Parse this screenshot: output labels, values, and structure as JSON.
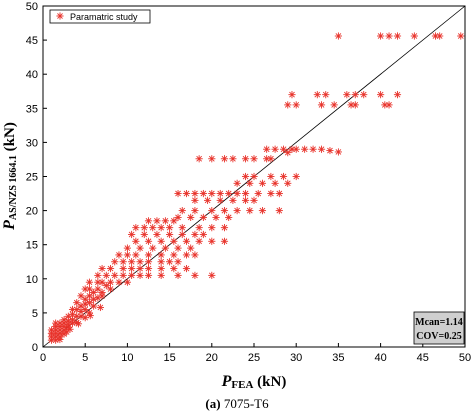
{
  "chart_data": {
    "type": "scatter",
    "xlabel_main": "P",
    "xlabel_sub": "FEA",
    "xlabel_unit": " (kN)",
    "ylabel_main": "P",
    "ylabel_sub": "AS/NZS 1664.1",
    "ylabel_unit": " (kN)",
    "xlim": [
      0,
      50
    ],
    "ylim": [
      0,
      50
    ],
    "xticks": [
      "0",
      "5",
      "10",
      "15",
      "20",
      "25",
      "30",
      "35",
      "40",
      "45",
      "50"
    ],
    "yticks": [
      "0",
      "5",
      "10",
      "15",
      "20",
      "25",
      "30",
      "35",
      "40",
      "45",
      "50"
    ],
    "legend": {
      "label": "Paramatric study",
      "position": "top-left"
    },
    "stats": {
      "mean": "Mcan=1.14",
      "cov": "COV=0.25"
    },
    "reference_line": {
      "from": [
        0,
        0
      ],
      "to": [
        50,
        50
      ]
    },
    "colors": {
      "marker": "#e8322a",
      "line": "#000000"
    },
    "series": [
      {
        "name": "Paramatric study",
        "points": [
          [
            35.0,
            45.6
          ],
          [
            40.0,
            45.6
          ],
          [
            41.0,
            45.6
          ],
          [
            42.0,
            45.6
          ],
          [
            44.0,
            45.6
          ],
          [
            46.5,
            45.6
          ],
          [
            47.0,
            45.6
          ],
          [
            49.5,
            45.6
          ],
          [
            29.5,
            37.0
          ],
          [
            32.5,
            37.0
          ],
          [
            33.5,
            37.0
          ],
          [
            36.0,
            37.0
          ],
          [
            37.0,
            37.0
          ],
          [
            38.0,
            37.0
          ],
          [
            40.0,
            37.0
          ],
          [
            42.0,
            37.0
          ],
          [
            29.0,
            35.5
          ],
          [
            30.0,
            35.5
          ],
          [
            33.0,
            35.5
          ],
          [
            34.5,
            35.5
          ],
          [
            36.5,
            35.5
          ],
          [
            37.0,
            35.5
          ],
          [
            40.5,
            35.5
          ],
          [
            41.0,
            35.5
          ],
          [
            29.5,
            29.0
          ],
          [
            30.0,
            29.0
          ],
          [
            31.0,
            29.0
          ],
          [
            32.0,
            29.0
          ],
          [
            33.0,
            29.0
          ],
          [
            34.0,
            28.8
          ],
          [
            35.0,
            28.6
          ],
          [
            26.5,
            29.0
          ],
          [
            27.5,
            29.0
          ],
          [
            28.5,
            29.0
          ],
          [
            29.0,
            28.5
          ],
          [
            18.5,
            27.6
          ],
          [
            20.0,
            27.6
          ],
          [
            21.5,
            27.6
          ],
          [
            22.5,
            27.6
          ],
          [
            24.0,
            27.6
          ],
          [
            25.0,
            27.6
          ],
          [
            26.5,
            27.6
          ],
          [
            27.0,
            27.6
          ],
          [
            24.0,
            25.0
          ],
          [
            25.0,
            25.0
          ],
          [
            27.0,
            25.0
          ],
          [
            28.5,
            25.0
          ],
          [
            30.0,
            25.0
          ],
          [
            23.0,
            24.0
          ],
          [
            24.5,
            24.0
          ],
          [
            26.0,
            24.0
          ],
          [
            27.5,
            24.0
          ],
          [
            29.0,
            24.0
          ],
          [
            16.0,
            22.5
          ],
          [
            17.0,
            22.5
          ],
          [
            18.0,
            22.5
          ],
          [
            19.0,
            22.5
          ],
          [
            20.0,
            22.5
          ],
          [
            21.0,
            22.5
          ],
          [
            22.0,
            22.5
          ],
          [
            23.0,
            22.5
          ],
          [
            24.0,
            22.5
          ],
          [
            25.5,
            22.5
          ],
          [
            27.0,
            22.5
          ],
          [
            28.0,
            22.5
          ],
          [
            18.0,
            21.5
          ],
          [
            19.5,
            21.5
          ],
          [
            21.0,
            21.5
          ],
          [
            22.5,
            21.5
          ],
          [
            24.0,
            21.5
          ],
          [
            25.0,
            21.5
          ],
          [
            16.5,
            20.0
          ],
          [
            18.0,
            20.0
          ],
          [
            20.0,
            20.0
          ],
          [
            21.5,
            20.0
          ],
          [
            23.0,
            20.0
          ],
          [
            24.5,
            20.0
          ],
          [
            26.0,
            20.0
          ],
          [
            28.0,
            20.0
          ],
          [
            12.5,
            18.5
          ],
          [
            13.5,
            18.5
          ],
          [
            14.5,
            18.5
          ],
          [
            15.5,
            18.5
          ],
          [
            16.0,
            19.0
          ],
          [
            17.5,
            19.0
          ],
          [
            19.0,
            19.0
          ],
          [
            20.5,
            19.0
          ],
          [
            22.0,
            19.0
          ],
          [
            11.0,
            17.5
          ],
          [
            12.0,
            17.5
          ],
          [
            13.0,
            17.5
          ],
          [
            14.0,
            17.5
          ],
          [
            15.0,
            17.5
          ],
          [
            16.5,
            17.5
          ],
          [
            18.5,
            17.5
          ],
          [
            20.0,
            17.5
          ],
          [
            21.5,
            17.5
          ],
          [
            10.5,
            16.5
          ],
          [
            12.0,
            16.5
          ],
          [
            13.5,
            16.5
          ],
          [
            15.0,
            16.5
          ],
          [
            16.5,
            16.5
          ],
          [
            18.0,
            16.5
          ],
          [
            19.0,
            16.5
          ],
          [
            11.0,
            15.5
          ],
          [
            12.5,
            15.5
          ],
          [
            14.0,
            15.5
          ],
          [
            15.5,
            15.5
          ],
          [
            17.0,
            15.5
          ],
          [
            18.5,
            15.5
          ],
          [
            20.0,
            15.5
          ],
          [
            21.5,
            15.5
          ],
          [
            10.0,
            14.5
          ],
          [
            11.5,
            14.5
          ],
          [
            13.0,
            14.5
          ],
          [
            14.5,
            14.5
          ],
          [
            16.0,
            14.5
          ],
          [
            17.5,
            14.5
          ],
          [
            9.0,
            13.5
          ],
          [
            10.0,
            13.5
          ],
          [
            11.0,
            13.5
          ],
          [
            12.5,
            13.5
          ],
          [
            14.0,
            13.5
          ],
          [
            15.5,
            13.5
          ],
          [
            17.0,
            13.5
          ],
          [
            18.0,
            13.5
          ],
          [
            8.5,
            12.5
          ],
          [
            9.5,
            12.5
          ],
          [
            10.5,
            12.5
          ],
          [
            11.5,
            12.5
          ],
          [
            12.5,
            12.5
          ],
          [
            14.0,
            12.5
          ],
          [
            15.0,
            12.5
          ],
          [
            16.0,
            12.5
          ],
          [
            7.0,
            11.5
          ],
          [
            8.0,
            11.5
          ],
          [
            9.5,
            11.5
          ],
          [
            10.5,
            11.5
          ],
          [
            11.5,
            11.5
          ],
          [
            12.5,
            11.5
          ],
          [
            14.0,
            11.5
          ],
          [
            15.5,
            11.5
          ],
          [
            17.0,
            11.5
          ],
          [
            6.5,
            10.5
          ],
          [
            7.5,
            10.5
          ],
          [
            8.5,
            10.5
          ],
          [
            9.5,
            10.5
          ],
          [
            10.5,
            10.5
          ],
          [
            11.5,
            10.5
          ],
          [
            12.5,
            10.5
          ],
          [
            14.0,
            10.5
          ],
          [
            16.0,
            10.5
          ],
          [
            18.0,
            10.5
          ],
          [
            20.0,
            10.5
          ],
          [
            5.5,
            9.5
          ],
          [
            6.5,
            9.5
          ],
          [
            7.0,
            9.5
          ],
          [
            7.5,
            9.0
          ],
          [
            8.0,
            9.5
          ],
          [
            9.0,
            9.5
          ],
          [
            10.0,
            9.5
          ],
          [
            5.0,
            8.5
          ],
          [
            5.5,
            8.5
          ],
          [
            6.0,
            8.0
          ],
          [
            6.5,
            8.5
          ],
          [
            7.0,
            8.0
          ],
          [
            8.0,
            8.5
          ],
          [
            4.5,
            7.5
          ],
          [
            5.0,
            7.0
          ],
          [
            5.5,
            7.5
          ],
          [
            6.0,
            7.0
          ],
          [
            6.5,
            7.2
          ],
          [
            7.0,
            7.5
          ],
          [
            4.0,
            6.5
          ],
          [
            4.5,
            6.0
          ],
          [
            5.0,
            6.3
          ],
          [
            5.5,
            6.5
          ],
          [
            6.0,
            6.0
          ],
          [
            3.5,
            5.5
          ],
          [
            4.0,
            5.5
          ],
          [
            4.5,
            5.2
          ],
          [
            5.0,
            5.5
          ],
          [
            5.5,
            5.0
          ],
          [
            3.0,
            4.5
          ],
          [
            3.5,
            4.8
          ],
          [
            4.0,
            4.5
          ],
          [
            4.5,
            4.5
          ],
          [
            5.0,
            4.3
          ],
          [
            2.5,
            4.0
          ],
          [
            3.0,
            3.8
          ],
          [
            3.5,
            4.0
          ],
          [
            4.0,
            3.6
          ],
          [
            1.5,
            3.5
          ],
          [
            2.0,
            3.5
          ],
          [
            2.5,
            3.5
          ],
          [
            3.0,
            3.3
          ],
          [
            3.5,
            3.5
          ],
          [
            1.5,
            3.0
          ],
          [
            2.0,
            3.0
          ],
          [
            2.5,
            3.0
          ],
          [
            3.0,
            2.9
          ],
          [
            1.0,
            2.5
          ],
          [
            1.5,
            2.5
          ],
          [
            2.0,
            2.5
          ],
          [
            2.5,
            2.5
          ],
          [
            1.0,
            2.0
          ],
          [
            1.5,
            2.0
          ],
          [
            2.0,
            2.0
          ],
          [
            2.5,
            1.9
          ],
          [
            1.0,
            1.5
          ],
          [
            1.5,
            1.5
          ],
          [
            2.0,
            1.5
          ],
          [
            1.0,
            1.0
          ],
          [
            1.5,
            1.0
          ],
          [
            2.0,
            1.1
          ],
          [
            2.8,
            2.2
          ],
          [
            3.2,
            2.6
          ],
          [
            4.2,
            3.4
          ],
          [
            5.6,
            4.6
          ],
          [
            6.8,
            5.8
          ]
        ]
      }
    ]
  },
  "caption": {
    "label": "(a)",
    "text": " 7075-T6"
  }
}
